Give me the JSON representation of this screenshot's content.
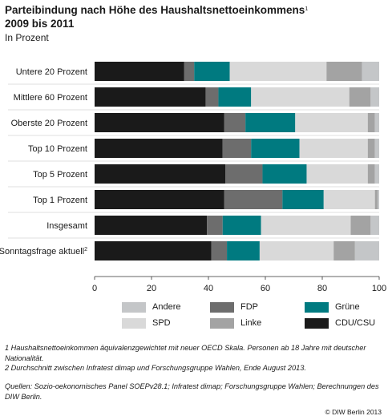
{
  "header": {
    "title_line1": "Parteibindung nach Höhe des Haushaltsnettoeinkommens",
    "title_sup": "1",
    "title_line2": "2009 bis 2011",
    "subtitle": "In Prozent"
  },
  "colors": {
    "CDU/CSU": "#1a1a1a",
    "FDP": "#6d6d6d",
    "Grüne": "#007a80",
    "SPD": "#d9d9d9",
    "Linke": "#a3a3a3",
    "Andere": "#c4c6c8"
  },
  "legend": [
    {
      "key": "Andere",
      "label": "Andere"
    },
    {
      "key": "SPD",
      "label": "SPD"
    },
    {
      "key": "FDP",
      "label": "FDP"
    },
    {
      "key": "Linke",
      "label": "Linke"
    },
    {
      "key": "Grüne",
      "label": "Grüne"
    },
    {
      "key": "CDU/CSU",
      "label": "CDU/CSU"
    }
  ],
  "chart_data": {
    "type": "bar",
    "orientation": "horizontal",
    "stacked": true,
    "categories": [
      "Untere 20 Prozent",
      "Mittlere 60 Prozent",
      "Oberste 20 Prozent",
      "Top 10 Prozent",
      "Top 5 Prozent",
      "Top 1 Prozent",
      "Insgesamt",
      "Sonntagsfrage aktuell"
    ],
    "category_sup": [
      "",
      "",
      "",
      "",
      "",
      "",
      "",
      "2"
    ],
    "series": [
      {
        "name": "CDU/CSU",
        "values": [
          31.5,
          39,
          45.5,
          45,
          46,
          45.5,
          39.5,
          41
        ]
      },
      {
        "name": "FDP",
        "values": [
          3.5,
          4.5,
          7.5,
          10,
          13,
          20.5,
          5.5,
          5.5
        ]
      },
      {
        "name": "Grüne",
        "values": [
          12.5,
          11.5,
          17.5,
          17,
          15.5,
          14.5,
          13.5,
          11.5
        ]
      },
      {
        "name": "SPD",
        "values": [
          34,
          34.5,
          25.5,
          24,
          21.5,
          18,
          31.5,
          26
        ]
      },
      {
        "name": "Linke",
        "values": [
          12.5,
          7.5,
          2.5,
          2.5,
          2.5,
          1,
          7,
          7.5
        ]
      },
      {
        "name": "Andere",
        "values": [
          6,
          3,
          1.5,
          1.5,
          1.5,
          0.5,
          3,
          8.5
        ]
      }
    ],
    "xlim": [
      0,
      100
    ],
    "xticks": [
      0,
      20,
      40,
      60,
      80,
      100
    ],
    "grid": false,
    "legend_position": "bottom"
  },
  "footnotes": [
    "1  Haushaltsnettoeinkommen äquivalenzgewichtet mit neuer OECD Skala. Personen ab 18 Jahre mit deutscher Nationalität.",
    "2  Durchschnitt zwischen Infratest dimap und Forschungsgruppe Wahlen, Ende August 2013."
  ],
  "sources": "Quellen: Sozio-oekonomisches Panel SOEPv28.1; Infratest dimap; Forschungsgruppe Wahlen; Berechnungen des DIW Berlin.",
  "credit": "© DIW Berlin 2013"
}
